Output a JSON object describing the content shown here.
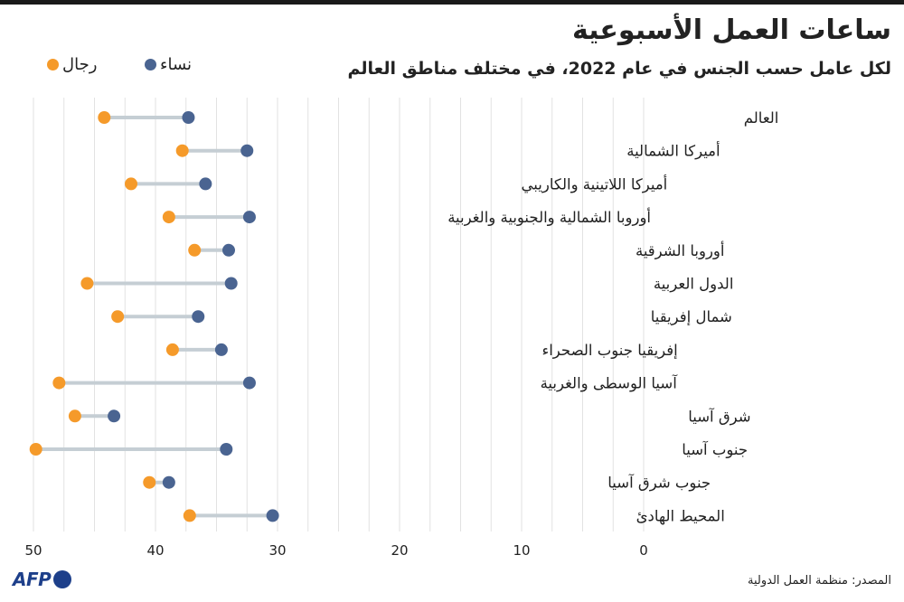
{
  "title": "ساعات العمل الأسبوعية",
  "subtitle": "لكل عامل حسب الجنس في عام 2022، في مختلف مناطق العالم",
  "legend": {
    "women": "نساء",
    "men": "رجال"
  },
  "colors": {
    "women": "#4a6491",
    "men": "#f59a2a",
    "connector": "#c5ced4",
    "grid": "#e2e2e2"
  },
  "source": "المصدر: منظمة العمل الدولية",
  "logo": {
    "text": "AFP"
  },
  "chart_data": {
    "type": "dumbbell",
    "title": "ساعات العمل الأسبوعية",
    "subtitle": "لكل عامل حسب الجنس في عام 2022، في مختلف مناطق العالم",
    "x_axis": {
      "ticks": [
        50,
        40,
        30,
        20,
        10,
        0
      ],
      "range": [
        0,
        50
      ],
      "reversed": true
    },
    "grid": true,
    "legend_position": "top-left",
    "categories": [
      "العالم",
      "أميركا الشمالية",
      "أميركا اللاتينية والكاريبي",
      "أوروبا الشمالية والجنوبية والغربية",
      "أوروبا الشرقية",
      "الدول العربية",
      "شمال إفريقيا",
      "إفريقيا جنوب الصحراء",
      "آسيا الوسطى والغربية",
      "شرق آسيا",
      "جنوب آسيا",
      "جنوب شرق آسيا",
      "المحيط الهادئ"
    ],
    "series": [
      {
        "name": "نساء",
        "values": [
          37.3,
          32.5,
          35.9,
          32.3,
          34.0,
          33.8,
          36.5,
          34.6,
          32.3,
          43.4,
          34.2,
          38.9,
          30.4
        ]
      },
      {
        "name": "رجال",
        "values": [
          44.2,
          37.8,
          42.0,
          38.9,
          36.8,
          45.6,
          43.1,
          38.6,
          47.9,
          46.6,
          49.8,
          40.5,
          37.2
        ]
      }
    ]
  }
}
